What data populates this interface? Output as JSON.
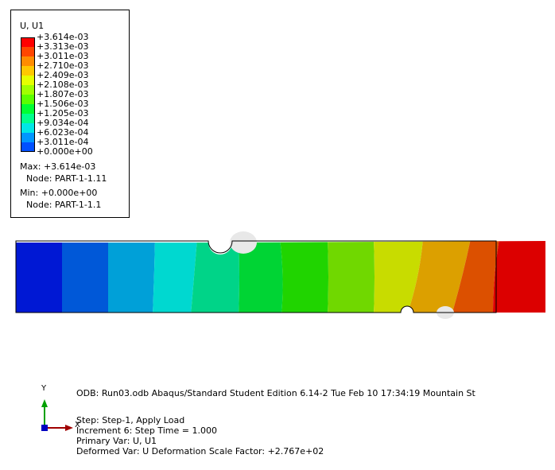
{
  "legend": {
    "title": "U, U1",
    "levels": [
      {
        "label": "+3.614e-03",
        "color": "#ff0000"
      },
      {
        "label": "+3.313e-03",
        "color": "#ff4600"
      },
      {
        "label": "+3.011e-03",
        "color": "#ff8c00"
      },
      {
        "label": "+2.710e-03",
        "color": "#ffc800"
      },
      {
        "label": "+2.409e-03",
        "color": "#e6ff00"
      },
      {
        "label": "+2.108e-03",
        "color": "#a0ff00"
      },
      {
        "label": "+1.807e-03",
        "color": "#5aff00"
      },
      {
        "label": "+1.506e-03",
        "color": "#00ff32"
      },
      {
        "label": "+1.205e-03",
        "color": "#00ff8c"
      },
      {
        "label": "+9.034e-04",
        "color": "#00e6e6"
      },
      {
        "label": "+6.023e-04",
        "color": "#0096ff"
      },
      {
        "label": "+3.011e-04",
        "color": "#0050ff"
      },
      {
        "label": "+0.000e+00",
        "color": "#0000ff"
      }
    ],
    "max_line": "Max: +3.614e-03",
    "max_node": "Node: PART-1-1.11",
    "min_line": "Min: +0.000e+00",
    "min_node": "Node: PART-1-1.1"
  },
  "model": {
    "band_colors": [
      "#0018d4",
      "#0058d8",
      "#00a0d8",
      "#00d8d0",
      "#00d488",
      "#00d434",
      "#20d400",
      "#70d800",
      "#c8dc00",
      "#dca000",
      "#dc5000",
      "#dc0000"
    ]
  },
  "triad": {
    "y_label": "Y",
    "x_label": "X"
  },
  "footer": {
    "odb_line": "ODB: Run03.odb    Abaqus/Standard Student Edition 6.14-2    Tue Feb 10 17:34:19 Mountain St",
    "step_line": "Step: Step-1, Apply Load",
    "increment_line": "Increment      6: Step Time =      1.000",
    "primary_var": "Primary Var: U, U1",
    "deformed_var": "Deformed Var: U   Deformation Scale Factor: +2.767e+02"
  }
}
